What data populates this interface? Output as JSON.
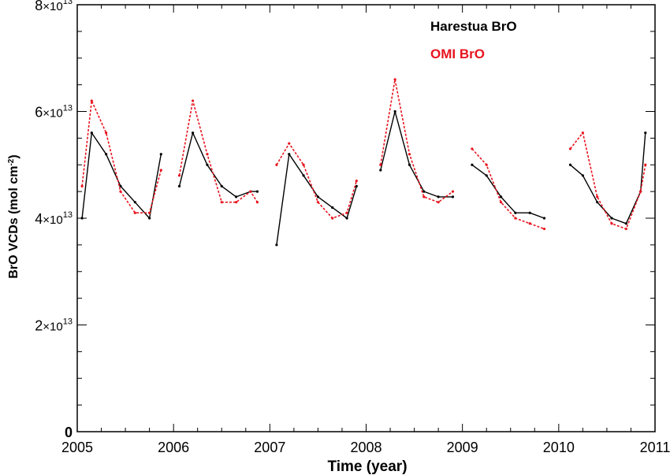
{
  "chart_data": {
    "type": "line",
    "xlabel": "Time (year)",
    "ylabel": "BrO VCDs (mol cm",
    "ylabel_sup": "-2",
    "ylabel_close": ")",
    "xlim": [
      2005,
      2011
    ],
    "ylim": [
      0,
      80000000000000.0
    ],
    "x_ticks": [
      "2005",
      "2006",
      "2007",
      "2008",
      "2009",
      "2010",
      "2011"
    ],
    "y_ticks": [
      {
        "value": 0,
        "mantissa": "0",
        "times": "",
        "exp": ""
      },
      {
        "value": 20000000000000.0,
        "mantissa": "2",
        "times": "×10",
        "exp": "13"
      },
      {
        "value": 40000000000000.0,
        "mantissa": "4",
        "times": "×10",
        "exp": "13"
      },
      {
        "value": 60000000000000.0,
        "mantissa": "6",
        "times": "×10",
        "exp": "13"
      },
      {
        "value": 80000000000000.0,
        "mantissa": "8",
        "times": "×10",
        "exp": "13"
      }
    ],
    "legend_position": "top-right",
    "series": [
      {
        "name": "Harestua BrO",
        "color": "#000000",
        "style": "solid",
        "segments": [
          {
            "x": [
              2005.05,
              2005.15,
              2005.3,
              2005.45,
              2005.6,
              2005.75,
              2005.87
            ],
            "y": [
              40000000000000.0,
              56000000000000.0,
              52000000000000.0,
              46000000000000.0,
              43000000000000.0,
              40000000000000.0,
              52000000000000.0
            ]
          },
          {
            "x": [
              2006.06,
              2006.2,
              2006.35,
              2006.5,
              2006.65,
              2006.8,
              2006.87
            ],
            "y": [
              46000000000000.0,
              56000000000000.0,
              50000000000000.0,
              46000000000000.0,
              44000000000000.0,
              45000000000000.0,
              45000000000000.0
            ]
          },
          {
            "x": [
              2007.07,
              2007.2,
              2007.35,
              2007.5,
              2007.65,
              2007.8,
              2007.9
            ],
            "y": [
              35000000000000.0,
              52000000000000.0,
              48000000000000.0,
              44000000000000.0,
              42000000000000.0,
              40000000000000.0,
              46000000000000.0
            ]
          },
          {
            "x": [
              2008.15,
              2008.3,
              2008.45,
              2008.6,
              2008.75,
              2008.9
            ],
            "y": [
              49000000000000.0,
              60000000000000.0,
              50000000000000.0,
              45000000000000.0,
              44000000000000.0,
              44000000000000.0
            ]
          },
          {
            "x": [
              2009.1,
              2009.25,
              2009.4,
              2009.55,
              2009.7,
              2009.85
            ],
            "y": [
              50000000000000.0,
              48000000000000.0,
              44000000000000.0,
              41000000000000.0,
              41000000000000.0,
              40000000000000.0
            ]
          },
          {
            "x": [
              2010.12,
              2010.25,
              2010.4,
              2010.55,
              2010.7,
              2010.85,
              2010.9
            ],
            "y": [
              50000000000000.0,
              48000000000000.0,
              43000000000000.0,
              40000000000000.0,
              39000000000000.0,
              45000000000000.0,
              56000000000000.0
            ]
          }
        ]
      },
      {
        "name": "OMI BrO",
        "color": "#e8141e",
        "style": "dotted",
        "segments": [
          {
            "x": [
              2005.05,
              2005.15,
              2005.3,
              2005.45,
              2005.6,
              2005.75,
              2005.87
            ],
            "y": [
              46000000000000.0,
              62000000000000.0,
              56000000000000.0,
              45000000000000.0,
              41000000000000.0,
              41000000000000.0,
              49000000000000.0
            ]
          },
          {
            "x": [
              2006.06,
              2006.2,
              2006.35,
              2006.5,
              2006.65,
              2006.8,
              2006.87
            ],
            "y": [
              48000000000000.0,
              62000000000000.0,
              52000000000000.0,
              43000000000000.0,
              43000000000000.0,
              45000000000000.0,
              43000000000000.0
            ]
          },
          {
            "x": [
              2007.07,
              2007.2,
              2007.35,
              2007.5,
              2007.65,
              2007.8,
              2007.9
            ],
            "y": [
              50000000000000.0,
              54000000000000.0,
              50000000000000.0,
              43000000000000.0,
              40000000000000.0,
              41000000000000.0,
              47000000000000.0
            ]
          },
          {
            "x": [
              2008.15,
              2008.3,
              2008.45,
              2008.6,
              2008.75,
              2008.9
            ],
            "y": [
              50000000000000.0,
              66000000000000.0,
              52000000000000.0,
              44000000000000.0,
              43000000000000.0,
              45000000000000.0
            ]
          },
          {
            "x": [
              2009.1,
              2009.25,
              2009.4,
              2009.55,
              2009.7,
              2009.85
            ],
            "y": [
              53000000000000.0,
              50000000000000.0,
              43000000000000.0,
              40000000000000.0,
              39000000000000.0,
              38000000000000.0
            ]
          },
          {
            "x": [
              2010.12,
              2010.25,
              2010.4,
              2010.55,
              2010.7,
              2010.85,
              2010.9
            ],
            "y": [
              53000000000000.0,
              56000000000000.0,
              44000000000000.0,
              39000000000000.0,
              38000000000000.0,
              45000000000000.0,
              50000000000000.0
            ]
          }
        ]
      }
    ]
  }
}
